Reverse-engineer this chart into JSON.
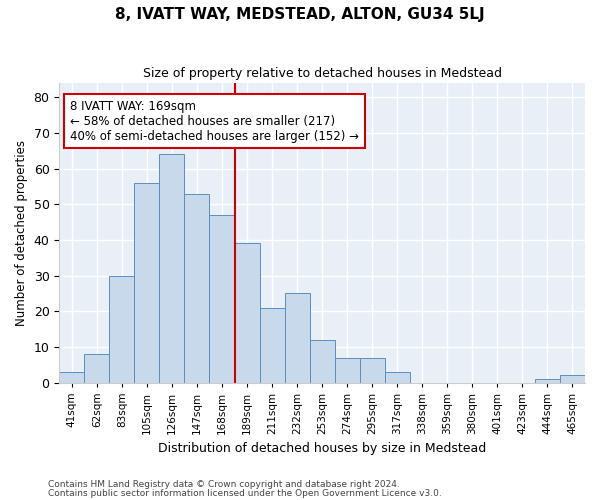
{
  "title": "8, IVATT WAY, MEDSTEAD, ALTON, GU34 5LJ",
  "subtitle": "Size of property relative to detached houses in Medstead",
  "xlabel": "Distribution of detached houses by size in Medstead",
  "ylabel": "Number of detached properties",
  "categories": [
    "41sqm",
    "62sqm",
    "83sqm",
    "105sqm",
    "126sqm",
    "147sqm",
    "168sqm",
    "189sqm",
    "211sqm",
    "232sqm",
    "253sqm",
    "274sqm",
    "295sqm",
    "317sqm",
    "338sqm",
    "359sqm",
    "380sqm",
    "401sqm",
    "423sqm",
    "444sqm",
    "465sqm"
  ],
  "values": [
    3,
    8,
    30,
    56,
    64,
    53,
    47,
    39,
    21,
    25,
    12,
    7,
    7,
    3,
    0,
    0,
    0,
    0,
    0,
    1,
    2
  ],
  "bar_color": "#c8d9ec",
  "bar_edge_color": "#5a8fc0",
  "background_color": "#e8eff7",
  "grid_color": "#ffffff",
  "redline_idx": 6,
  "annotation_text_line1": "8 IVATT WAY: 169sqm",
  "annotation_text_line2": "← 58% of detached houses are smaller (217)",
  "annotation_text_line3": "40% of semi-detached houses are larger (152) →",
  "annotation_box_color": "#cc0000",
  "ylim": [
    0,
    84
  ],
  "yticks": [
    0,
    10,
    20,
    30,
    40,
    50,
    60,
    70,
    80
  ],
  "footer_line1": "Contains HM Land Registry data © Crown copyright and database right 2024.",
  "footer_line2": "Contains public sector information licensed under the Open Government Licence v3.0.",
  "fig_bg": "#ffffff"
}
